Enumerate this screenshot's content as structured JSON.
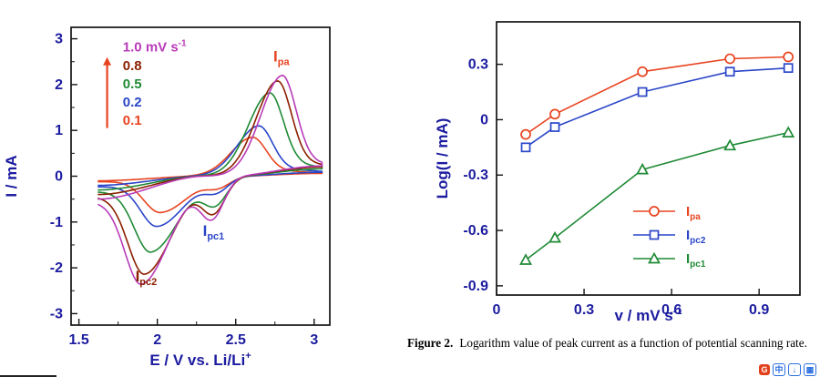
{
  "caption": {
    "label": "Figure 2.",
    "text": "Logarithm value of peak current as a function of potential scanning rate."
  },
  "tray": {
    "icons": [
      {
        "name": "red-app-icon",
        "glyph": "G",
        "bg": "#e2401b",
        "fg": "#ffffff"
      },
      {
        "name": "translate-icon",
        "glyph": "中",
        "bg": "#ffffff",
        "fg": "#2a6fe0"
      },
      {
        "name": "download-icon",
        "glyph": "↓",
        "bg": "#ffffff",
        "fg": "#2a6fe0"
      },
      {
        "name": "reader-icon",
        "glyph": "▦",
        "bg": "#ffffff",
        "fg": "#2a6fe0"
      }
    ]
  },
  "chart_data": [
    {
      "id": "cyclic-voltammogram",
      "type": "line",
      "description": "Cyclic voltammograms of electrode at different potential scan rates",
      "xlabel": "E / V vs. Li/Li",
      "xlabel_sup": "+",
      "ylabel": "I / mA",
      "xlim": [
        1.45,
        3.1
      ],
      "ylim": [
        -3.25,
        3.25
      ],
      "xticks": [
        1.5,
        2,
        2.5,
        3
      ],
      "yticks": [
        -3,
        -2,
        -1,
        0,
        1,
        2,
        3
      ],
      "tick_label_color": "#1c1ca0",
      "axis_label_color": "#1c1ca0",
      "frame_color": "#141414",
      "legend": {
        "x": 1.78,
        "y_start": 2.72,
        "dy": 0.4,
        "entries": [
          {
            "label": "1.0",
            "suffix": " mV s",
            "sup": "-1",
            "color": "#b83bb8"
          },
          {
            "label": "0.8",
            "color": "#8b2000"
          },
          {
            "label": "0.5",
            "color": "#1f8a35"
          },
          {
            "label": "0.2",
            "color": "#2a46c8"
          },
          {
            "label": "0.1",
            "color": "#e8431f"
          }
        ],
        "arrow": {
          "x": 1.68,
          "y0": 1.05,
          "y1": 2.6,
          "color": "#e8431f"
        }
      },
      "annotations": [
        {
          "main": "I",
          "sub": "pa",
          "x": 2.74,
          "y": 2.5,
          "color": "#e8431f"
        },
        {
          "main": "I",
          "sub": "pc1",
          "x": 2.29,
          "y": -1.3,
          "color": "#2a46c8"
        },
        {
          "main": "I",
          "sub": "pc2",
          "x": 1.86,
          "y": -2.3,
          "color": "#8b2000"
        }
      ],
      "series": [
        {
          "name": "0.1 mV s-1",
          "color": "#e8431f",
          "Epa": 2.61,
          "Ipa": 0.85,
          "Epc1": 2.39,
          "Ipc1": -0.2,
          "Epc2": 2.02,
          "Ipc2": -0.72
        },
        {
          "name": "0.2 mV s-1",
          "color": "#2a46c8",
          "Epa": 2.65,
          "Ipa": 1.1,
          "Epc1": 2.38,
          "Ipc1": -0.28,
          "Epc2": 2.0,
          "Ipc2": -0.95
        },
        {
          "name": "0.5 mV s-1",
          "color": "#1f8a35",
          "Epa": 2.72,
          "Ipa": 1.82,
          "Epc1": 2.37,
          "Ipc1": -0.55,
          "Epc2": 1.96,
          "Ipc2": -1.42
        },
        {
          "name": "0.8 mV s-1",
          "color": "#8b2000",
          "Epa": 2.77,
          "Ipa": 2.08,
          "Epc1": 2.36,
          "Ipc1": -0.72,
          "Epc2": 1.92,
          "Ipc2": -1.8
        },
        {
          "name": "1.0 mV s-1",
          "color": "#b83bb8",
          "Epa": 2.8,
          "Ipa": 2.2,
          "Epc1": 2.35,
          "Ipc1": -0.83,
          "Epc2": 1.9,
          "Ipc2": -1.92
        }
      ]
    },
    {
      "id": "log-peak-current",
      "type": "scatter",
      "description": "Logarithm of peak current vs potential scan rate",
      "xlabel": "v / mV s",
      "xlabel_sup": "-1",
      "ylabel": "Log(I / mA)",
      "xlim": [
        0,
        1.04
      ],
      "ylim": [
        -0.95,
        0.53
      ],
      "xticks": [
        0,
        0.3,
        0.6,
        0.9
      ],
      "yticks": [
        -0.9,
        -0.6,
        -0.3,
        0,
        0.3
      ],
      "tick_label_color": "#1c1ca0",
      "axis_label_color": "#1c1ca0",
      "frame_color": "#141414",
      "x": [
        0.1,
        0.2,
        0.5,
        0.8,
        1.0
      ],
      "series": [
        {
          "name": "Ipa",
          "label_main": "I",
          "label_sub": "pa",
          "marker": "circle",
          "color": "#e8431f",
          "values": [
            -0.08,
            0.03,
            0.26,
            0.33,
            0.34
          ]
        },
        {
          "name": "Ipc2",
          "label_main": "I",
          "label_sub": "pc2",
          "marker": "square",
          "color": "#2a46c8",
          "values": [
            -0.15,
            -0.04,
            0.15,
            0.26,
            0.28
          ]
        },
        {
          "name": "Ipc1",
          "label_main": "I",
          "label_sub": "pc1",
          "marker": "triangle",
          "color": "#1f8a35",
          "values": [
            -0.76,
            -0.64,
            -0.27,
            -0.14,
            -0.07
          ]
        }
      ],
      "legend_position": "lower right"
    }
  ]
}
